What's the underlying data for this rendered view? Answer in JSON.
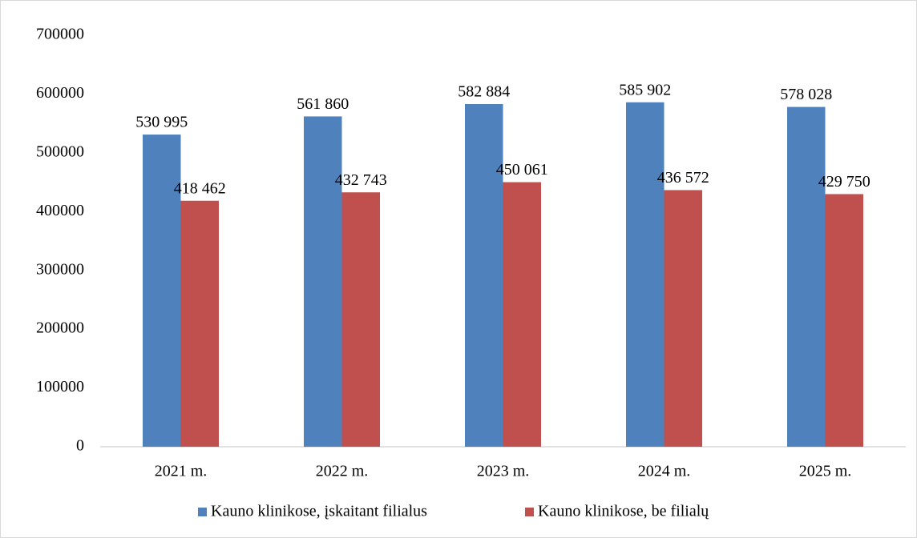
{
  "chart_data": {
    "type": "bar",
    "categories": [
      "2021 m.",
      "2022 m.",
      "2023 m.",
      "2024 m.",
      "2025 m."
    ],
    "series": [
      {
        "name": "Kauno klinikose, įskaitant filialus",
        "color": "#4f81bd",
        "values": [
          530995,
          561860,
          582884,
          585902,
          578028
        ],
        "value_labels": [
          "530 995",
          "561 860",
          "582 884",
          "585 902",
          "578 028"
        ]
      },
      {
        "name": "Kauno klinikose, be filialų",
        "color": "#c0504d",
        "values": [
          418462,
          432743,
          450061,
          436572,
          429750
        ],
        "value_labels": [
          "418 462",
          "432 743",
          "450 061",
          "436 572",
          "429 750"
        ]
      }
    ],
    "ylim": [
      0,
      700000
    ],
    "yticks": [
      0,
      100000,
      200000,
      300000,
      400000,
      500000,
      600000,
      700000
    ],
    "grid": false,
    "legend": "bottom"
  }
}
